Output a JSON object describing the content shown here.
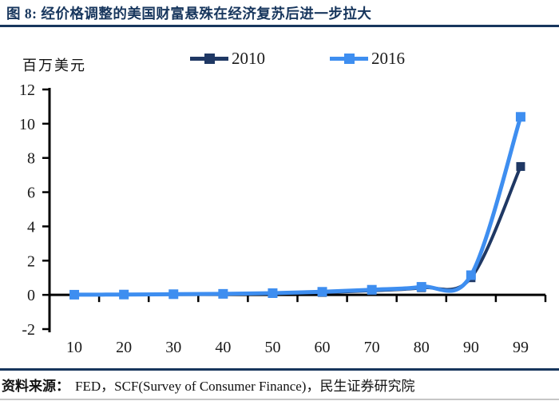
{
  "title": "图 8:  经价格调整的美国财富悬殊在经济复苏后进一步拉大",
  "unit_label": "百万美元",
  "footer": {
    "label": "资料来源：",
    "text": "FED，SCF(Survey of Consumer Finance)，民生证券研究院"
  },
  "colors": {
    "title_navy": "#17365D",
    "series_2010": "#1F3864",
    "series_2016": "#3E8EF0",
    "axis": "#000000",
    "rule_navy": "#17365D",
    "rule_gray": "#C6C6C6"
  },
  "chart_data": {
    "type": "line",
    "title": "",
    "xlabel": "",
    "ylabel": "百万美元",
    "categories": [
      "10",
      "20",
      "30",
      "40",
      "50",
      "60",
      "70",
      "80",
      "90",
      "99"
    ],
    "series": [
      {
        "name": "2010",
        "color": "#1F3864",
        "values": [
          0.01,
          0.02,
          0.03,
          0.05,
          0.08,
          0.14,
          0.25,
          0.42,
          1.0,
          7.5
        ]
      },
      {
        "name": "2016",
        "color": "#3E8EF0",
        "values": [
          0.01,
          0.02,
          0.04,
          0.06,
          0.1,
          0.18,
          0.3,
          0.47,
          1.15,
          10.4
        ]
      }
    ],
    "ylim": [
      -2,
      12
    ],
    "y_ticks": [
      12,
      10,
      8,
      6,
      4,
      2,
      0,
      -2
    ],
    "grid": false,
    "smooth": true,
    "marker": "square",
    "legend_position": "top"
  }
}
